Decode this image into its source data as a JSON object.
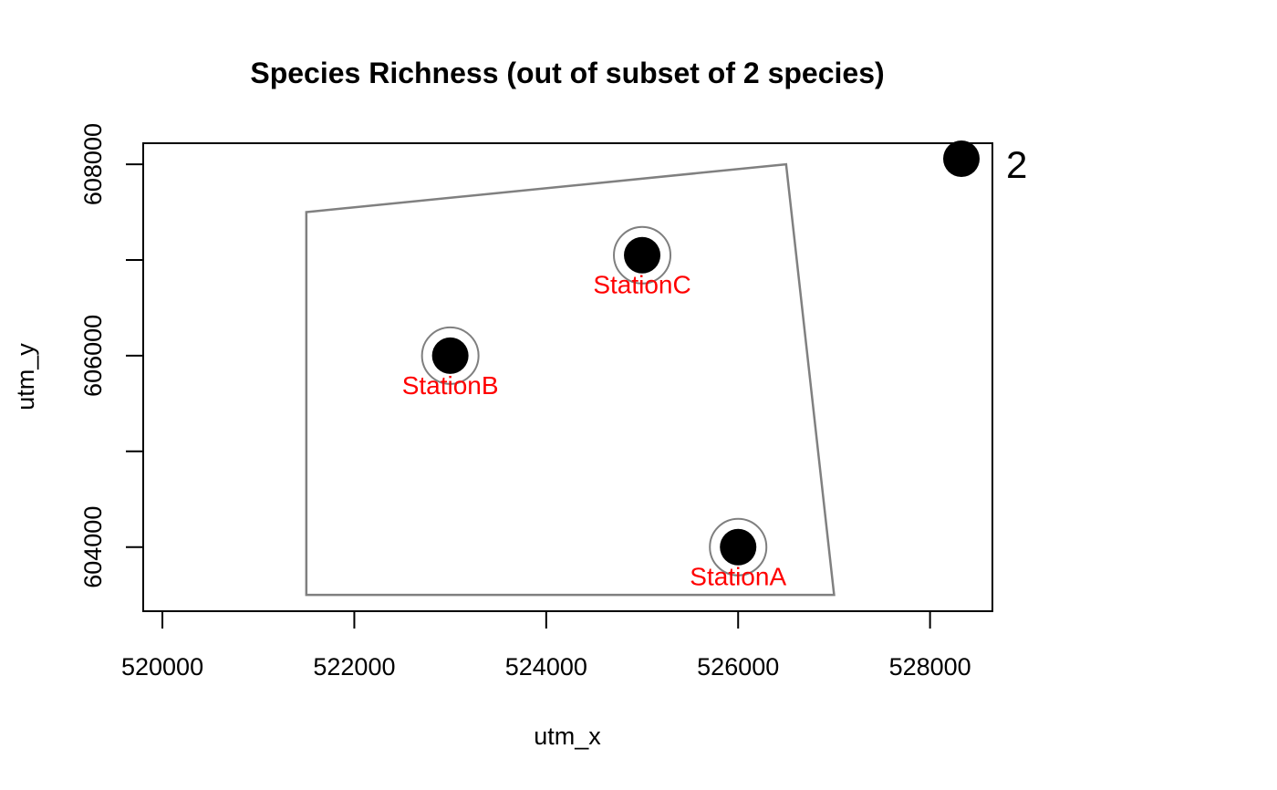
{
  "chart_data": {
    "type": "scatter",
    "title": "Species Richness (out of subset of 2 species)",
    "xlabel": "utm_x",
    "ylabel": "utm_y",
    "xlim": [
      519800,
      528650
    ],
    "ylim": [
      603330,
      608220
    ],
    "x_ticks": [
      520000,
      522000,
      524000,
      526000,
      528000
    ],
    "x_tick_labels": [
      "520000",
      "522000",
      "524000",
      "526000",
      "528000"
    ],
    "y_ticks": [
      604000,
      605000,
      606000,
      607000,
      608000
    ],
    "y_tick_labels": [
      "604000",
      "",
      "606000",
      "",
      "608000"
    ],
    "polygon": [
      [
        521500,
        603500
      ],
      [
        521500,
        607500
      ],
      [
        526500,
        608000
      ],
      [
        527000,
        603500
      ]
    ],
    "stations": [
      {
        "label": "StationA",
        "x": 526000,
        "y": 604000,
        "richness": 2
      },
      {
        "label": "StationB",
        "x": 523000,
        "y": 606000,
        "richness": 2
      },
      {
        "label": "StationC",
        "x": 525000,
        "y": 607050,
        "richness": 2
      }
    ],
    "legend": {
      "position": "top-right",
      "label": "2"
    },
    "colors": {
      "point": "#000000",
      "ring": "#7f7f7f",
      "polygon": "#808080",
      "station_label": "#ff0000",
      "axis": "#000000"
    }
  }
}
